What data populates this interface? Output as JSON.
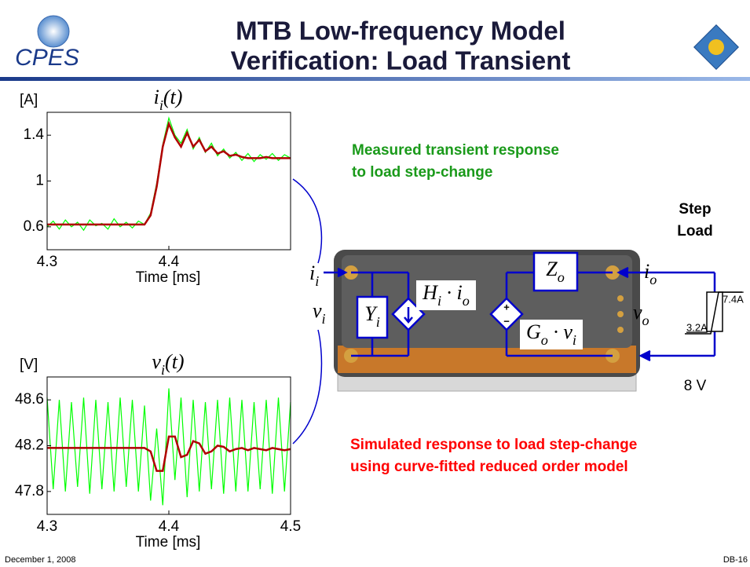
{
  "header": {
    "logo": "CPES",
    "title_lines": [
      "MTB Low-frequency Model",
      "Verification: Load Transient"
    ]
  },
  "chart_data": [
    {
      "type": "line",
      "unit_label": "[A]",
      "title": [
        {
          "text": "i",
          "sub": false
        },
        {
          "text": "i",
          "sub": true
        },
        {
          "text": "(t)",
          "sub": false
        }
      ],
      "xlabel": "Time [ms]",
      "x": [
        4.3,
        4.305,
        4.31,
        4.315,
        4.32,
        4.325,
        4.33,
        4.335,
        4.34,
        4.345,
        4.35,
        4.355,
        4.36,
        4.365,
        4.37,
        4.375,
        4.38,
        4.385,
        4.39,
        4.395,
        4.4,
        4.405,
        4.41,
        4.415,
        4.42,
        4.425,
        4.43,
        4.435,
        4.44,
        4.445,
        4.45,
        4.455,
        4.46,
        4.465,
        4.47,
        4.475,
        4.48,
        4.485,
        4.49,
        4.495,
        4.5
      ],
      "xlim": [
        4.3,
        4.5
      ],
      "xticks": [
        4.3,
        4.4
      ],
      "ylim": [
        0.4,
        1.6
      ],
      "yticks": [
        0.6,
        1,
        1.4
      ],
      "series": [
        {
          "color": "#00ff00",
          "values": [
            0.6,
            0.65,
            0.58,
            0.66,
            0.6,
            0.64,
            0.57,
            0.66,
            0.61,
            0.63,
            0.58,
            0.67,
            0.6,
            0.64,
            0.59,
            0.65,
            0.62,
            0.72,
            0.98,
            1.32,
            1.55,
            1.4,
            1.33,
            1.45,
            1.28,
            1.38,
            1.25,
            1.33,
            1.22,
            1.28,
            1.2,
            1.25,
            1.18,
            1.24,
            1.17,
            1.23,
            1.19,
            1.24,
            1.18,
            1.23,
            1.2
          ]
        },
        {
          "color": "#b00000",
          "values": [
            0.62,
            0.62,
            0.62,
            0.62,
            0.62,
            0.62,
            0.62,
            0.62,
            0.62,
            0.62,
            0.62,
            0.62,
            0.62,
            0.62,
            0.62,
            0.62,
            0.62,
            0.7,
            0.95,
            1.3,
            1.5,
            1.38,
            1.3,
            1.42,
            1.3,
            1.36,
            1.26,
            1.3,
            1.24,
            1.26,
            1.22,
            1.23,
            1.21,
            1.2,
            1.2,
            1.2,
            1.21,
            1.2,
            1.2,
            1.2,
            1.2
          ]
        }
      ]
    },
    {
      "type": "line",
      "unit_label": "[V]",
      "title": [
        {
          "text": "v",
          "sub": false
        },
        {
          "text": "i",
          "sub": true
        },
        {
          "text": "(t)",
          "sub": false
        }
      ],
      "xlabel": "Time [ms]",
      "x": [
        4.3,
        4.305,
        4.31,
        4.315,
        4.32,
        4.325,
        4.33,
        4.335,
        4.34,
        4.345,
        4.35,
        4.355,
        4.36,
        4.365,
        4.37,
        4.375,
        4.38,
        4.385,
        4.39,
        4.395,
        4.4,
        4.405,
        4.41,
        4.415,
        4.42,
        4.425,
        4.43,
        4.435,
        4.44,
        4.445,
        4.45,
        4.455,
        4.46,
        4.465,
        4.47,
        4.475,
        4.48,
        4.485,
        4.49,
        4.495,
        4.5
      ],
      "xlim": [
        4.3,
        4.5
      ],
      "xticks": [
        4.3,
        4.4,
        4.5
      ],
      "ylim": [
        47.6,
        48.8
      ],
      "yticks": [
        47.8,
        48.2,
        48.6
      ],
      "series": [
        {
          "color": "#00ff00",
          "values": [
            48.62,
            47.82,
            48.6,
            47.8,
            48.58,
            47.84,
            48.62,
            47.78,
            48.6,
            47.82,
            48.58,
            47.8,
            48.62,
            47.84,
            48.6,
            47.8,
            48.55,
            47.72,
            48.35,
            47.68,
            48.7,
            47.9,
            48.62,
            47.75,
            48.6,
            47.8,
            48.58,
            47.82,
            48.6,
            47.78,
            48.62,
            47.8,
            48.6,
            47.8,
            48.58,
            47.82,
            48.6,
            47.78,
            48.62,
            47.8,
            48.58
          ]
        },
        {
          "color": "#b00000",
          "values": [
            48.18,
            48.18,
            48.18,
            48.18,
            48.18,
            48.18,
            48.18,
            48.18,
            48.18,
            48.18,
            48.18,
            48.18,
            48.18,
            48.18,
            48.18,
            48.18,
            48.18,
            48.15,
            47.98,
            47.98,
            48.28,
            48.28,
            48.1,
            48.12,
            48.24,
            48.22,
            48.13,
            48.15,
            48.2,
            48.19,
            48.15,
            48.17,
            48.18,
            48.16,
            48.18,
            48.17,
            48.16,
            48.18,
            48.17,
            48.16,
            48.17
          ]
        }
      ]
    }
  ],
  "annotations": {
    "measured": [
      "Measured transient response",
      "to load step-change"
    ],
    "simulated": [
      "Simulated response to load step-change",
      "using curve-fitted reduced order model"
    ]
  },
  "diagram": {
    "input_current": [
      {
        "text": "i",
        "sub": false
      },
      {
        "text": "i",
        "sub": true
      }
    ],
    "input_voltage": [
      {
        "text": "v",
        "sub": false
      },
      {
        "text": "i",
        "sub": true
      }
    ],
    "admittance": [
      {
        "text": "Y",
        "sub": false
      },
      {
        "text": "i",
        "sub": true
      }
    ],
    "current_source": [
      {
        "text": "H",
        "sub": false
      },
      {
        "text": "i",
        "sub": true
      },
      {
        "text": " · i",
        "sub": false
      },
      {
        "text": "o",
        "sub": true
      }
    ],
    "impedance": [
      {
        "text": "Z",
        "sub": false
      },
      {
        "text": "o",
        "sub": true
      }
    ],
    "voltage_source": [
      {
        "text": "G",
        "sub": false
      },
      {
        "text": "o",
        "sub": true
      },
      {
        "text": " · v",
        "sub": false
      },
      {
        "text": "i",
        "sub": true
      }
    ],
    "output_current": [
      {
        "text": "i",
        "sub": false
      },
      {
        "text": "o",
        "sub": true
      }
    ],
    "output_voltage": [
      {
        "text": "v",
        "sub": false
      },
      {
        "text": "o",
        "sub": true
      }
    ],
    "step_load": [
      "Step",
      "Load"
    ],
    "low_current": "3.2A",
    "high_current": "7.4A",
    "voltage": "8 V"
  },
  "footer": {
    "date": "December 1, 2008",
    "page": "DB-16"
  }
}
